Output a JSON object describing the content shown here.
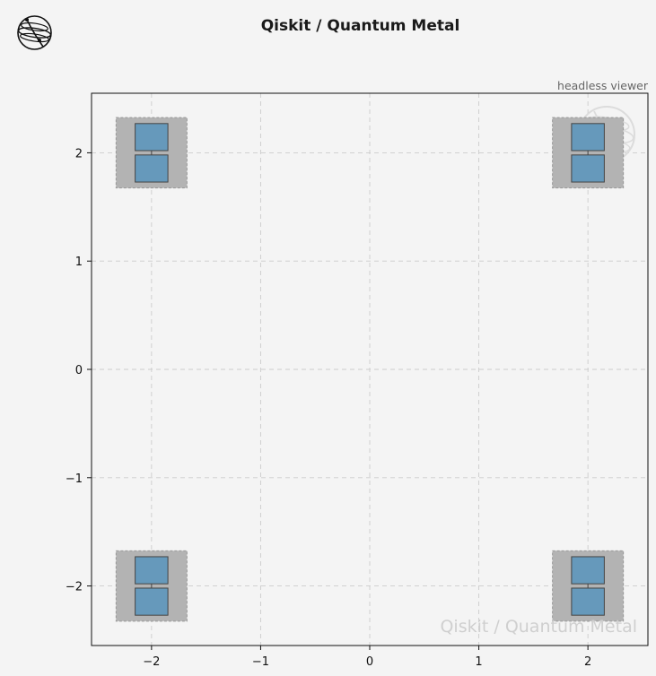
{
  "header": {
    "title": "Qiskit / Quantum Metal",
    "viewer_label": "headless viewer",
    "logo_icon": "qiskit-logo-icon"
  },
  "watermark": {
    "text": "Qiskit / Quantum Metal",
    "icon": "qiskit-watermark-icon"
  },
  "colors": {
    "background": "#f4f4f4",
    "pocket_fill": "#b3b3b3",
    "pocket_edge": "#999999",
    "pad_fill": "#6699bb",
    "pad_edge": "#444444",
    "grid": "#cccccc",
    "watermark": "#cfcfcf"
  },
  "chart_data": {
    "type": "layout",
    "title": "",
    "xlabel": "",
    "ylabel": "",
    "xlim": [
      -2.55,
      2.55
    ],
    "ylim": [
      -2.55,
      2.55
    ],
    "xticks": [
      -2,
      -1,
      0,
      1,
      2
    ],
    "yticks": [
      -2,
      -1,
      0,
      1,
      2
    ],
    "xtick_labels": [
      "−2",
      "−1",
      "0",
      "1",
      "2"
    ],
    "ytick_labels": [
      "−2",
      "−1",
      "0",
      "1",
      "2"
    ],
    "grid": true,
    "grid_style": "dashed",
    "components": [
      {
        "kind": "transmon",
        "x": -2,
        "y": 2,
        "pocket_w": 0.65,
        "pocket_h": 0.65,
        "pad_w": 0.3,
        "pad_h": 0.25,
        "pad_gap": 0.04
      },
      {
        "kind": "transmon",
        "x": 2,
        "y": 2,
        "pocket_w": 0.65,
        "pocket_h": 0.65,
        "pad_w": 0.3,
        "pad_h": 0.25,
        "pad_gap": 0.04
      },
      {
        "kind": "transmon",
        "x": -2,
        "y": -2,
        "pocket_w": 0.65,
        "pocket_h": 0.65,
        "pad_w": 0.3,
        "pad_h": 0.25,
        "pad_gap": 0.04
      },
      {
        "kind": "transmon",
        "x": 2,
        "y": -2,
        "pocket_w": 0.65,
        "pocket_h": 0.65,
        "pad_w": 0.3,
        "pad_h": 0.25,
        "pad_gap": 0.04
      }
    ]
  }
}
